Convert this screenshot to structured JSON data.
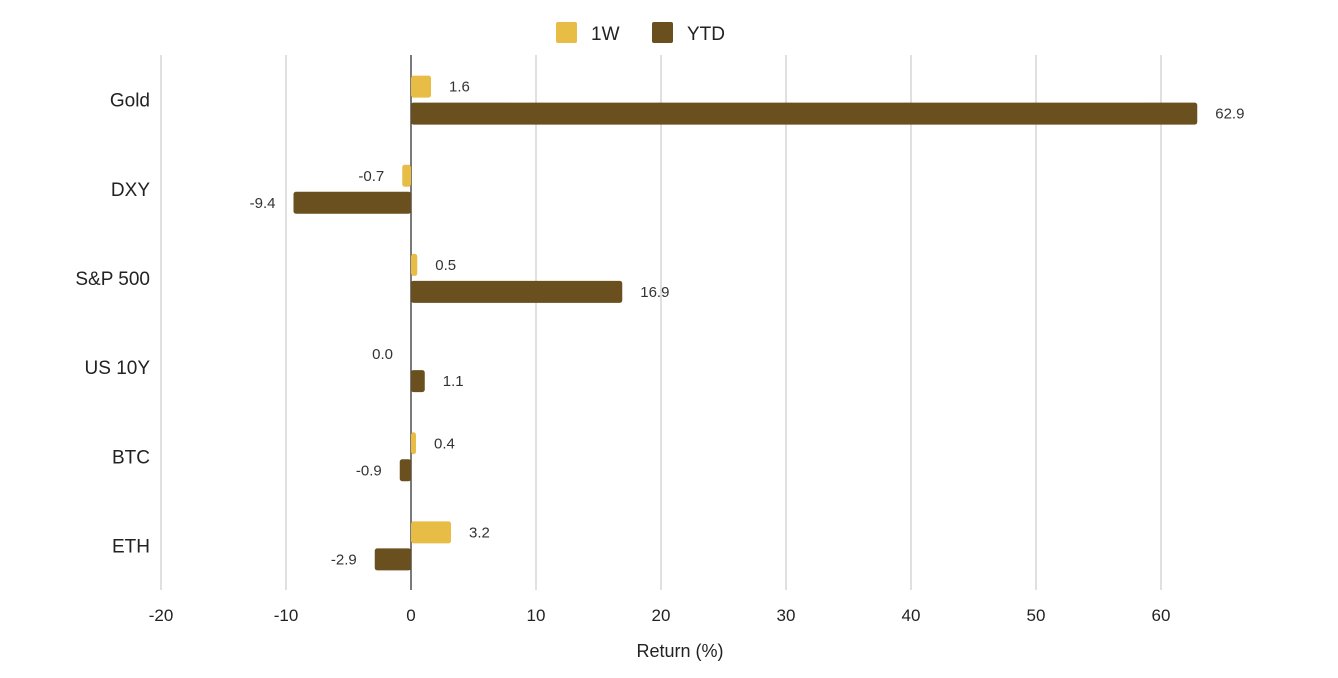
{
  "chart_data": {
    "type": "bar",
    "orientation": "horizontal",
    "title": "",
    "categories": [
      "Gold",
      "DXY",
      "S&P 500",
      "US 10Y",
      "BTC",
      "ETH"
    ],
    "series": [
      {
        "name": "1W",
        "color": "#E8BD45",
        "values": [
          1.6,
          -0.7,
          0.5,
          0.0,
          0.4,
          3.2
        ]
      },
      {
        "name": "YTD",
        "color": "#6A4F1F",
        "values": [
          62.9,
          -9.4,
          16.9,
          1.1,
          -0.9,
          -2.9
        ]
      }
    ],
    "xlabel": "Return (%)",
    "ylabel": "",
    "xlim": [
      -20,
      65
    ],
    "xticks": [
      -20,
      -10,
      0,
      10,
      20,
      30,
      40,
      50,
      60
    ],
    "grid": true,
    "legend": "top-center"
  }
}
